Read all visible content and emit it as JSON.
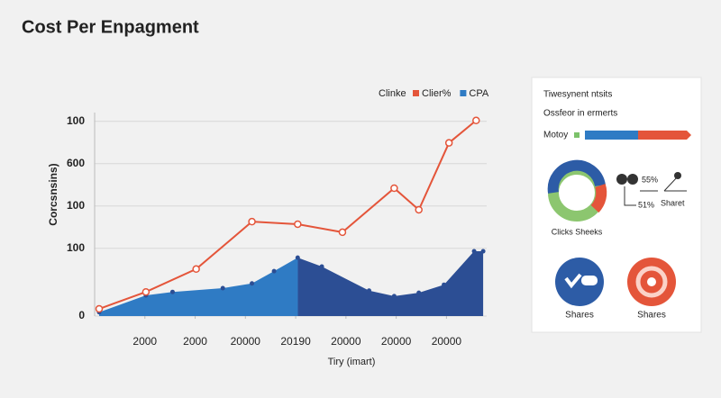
{
  "page_title": "Cost Per Enpagment",
  "chart_data": {
    "type": "line",
    "legend_title": "Clinke",
    "y_label": "Corcsnsins)",
    "x_label": "Tiry (imart)",
    "xlim": [
      0,
      7.8
    ],
    "xticks": [
      {
        "value": 1,
        "label": "2000"
      },
      {
        "value": 2,
        "label": "2000"
      },
      {
        "value": 3,
        "label": "20000"
      },
      {
        "value": 4,
        "label": "20190"
      },
      {
        "value": 5,
        "label": "20000"
      },
      {
        "value": 6,
        "label": "20000"
      },
      {
        "value": 7,
        "label": "20000"
      }
    ],
    "ylim": [
      0,
      4.7
    ],
    "yticks": [
      0,
      {
        "value": 1.6,
        "label": "100"
      },
      {
        "value": 2.6,
        "label": "100"
      },
      {
        "value": 3.6,
        "label": "600"
      },
      {
        "value": 4.6,
        "label": "100"
      }
    ],
    "grid": true,
    "series": [
      {
        "name": "Clier%",
        "color": "#e4553a",
        "style": "line",
        "x": [
          0.09,
          1.02,
          2.02,
          3.13,
          4.04,
          4.93,
          5.96,
          6.45,
          7.05,
          7.59
        ],
        "values": [
          0.17,
          0.57,
          1.11,
          2.23,
          2.17,
          1.98,
          3.02,
          2.51,
          4.09,
          4.62
        ]
      },
      {
        "name": "CPA",
        "color": "#2f7bc4",
        "dark_color": "#2c4e94",
        "style": "area",
        "x": [
          0.09,
          1.02,
          1.55,
          2.55,
          3.13,
          3.57,
          4.04,
          4.52,
          5.46,
          5.96,
          6.45,
          6.95,
          7.55,
          7.73
        ],
        "values": [
          0.09,
          0.49,
          0.57,
          0.66,
          0.77,
          1.06,
          1.38,
          1.17,
          0.6,
          0.47,
          0.55,
          0.74,
          1.53,
          1.53
        ]
      }
    ]
  },
  "panel": {
    "title": "Tiwesynent ntsits",
    "subtitle": "Ossfeor in ermerts",
    "bar_label": "Motoy",
    "pct_a": "55%",
    "pct_b": "51%",
    "share_label": "Sharet",
    "donut_caption": "Clicks Sheeks",
    "icon_a": "Shares",
    "icon_b": "Shares"
  }
}
